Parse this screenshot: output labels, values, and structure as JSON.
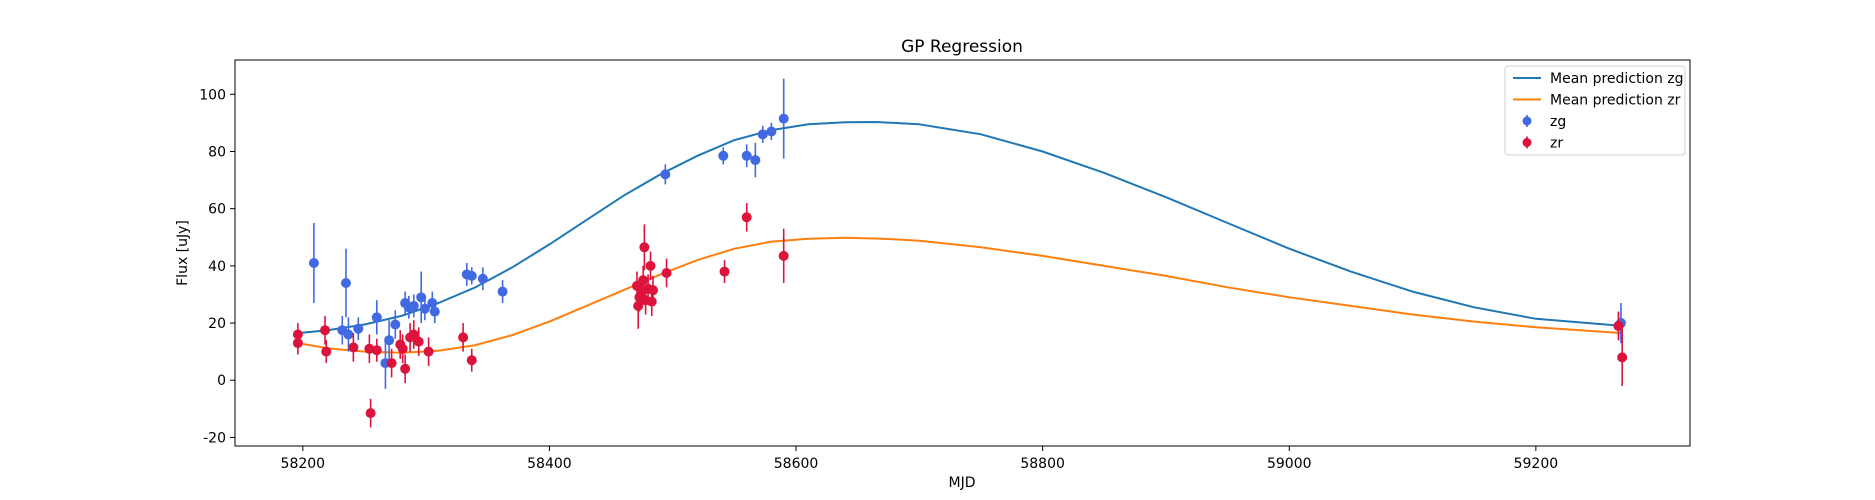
{
  "chart_data": {
    "type": "scatter",
    "title": "GP Regression",
    "xlabel": "MJD",
    "ylabel": "Flux [uJy]",
    "xlim": [
      58145,
      59325
    ],
    "ylim": [
      -23,
      112
    ],
    "xticks": [
      58200,
      58400,
      58600,
      58800,
      59000,
      59200
    ],
    "yticks": [
      -20,
      0,
      20,
      40,
      60,
      80,
      100
    ],
    "grid": false,
    "legend_position": "top-right",
    "lines": [
      {
        "name": "Mean prediction zg",
        "color": "#1f77b4",
        "x": [
          58196,
          58220,
          58250,
          58280,
          58310,
          58340,
          58370,
          58400,
          58430,
          58460,
          58490,
          58520,
          58550,
          58580,
          58610,
          58640,
          58665,
          58700,
          58750,
          58800,
          58850,
          58900,
          58950,
          59000,
          59050,
          59100,
          59150,
          59200,
          59270
        ],
        "y": [
          16.5,
          17.5,
          19.5,
          22.5,
          27,
          32.5,
          39.5,
          47.5,
          56,
          64.5,
          72,
          78.5,
          84,
          87.5,
          89.5,
          90.2,
          90.3,
          89.5,
          86,
          80,
          72.5,
          64,
          55,
          46,
          38,
          31,
          25.5,
          21.5,
          19
        ]
      },
      {
        "name": "Mean prediction zr",
        "color": "#ff7f0e",
        "x": [
          58196,
          58220,
          58250,
          58280,
          58310,
          58340,
          58370,
          58400,
          58430,
          58460,
          58490,
          58520,
          58550,
          58580,
          58610,
          58640,
          58670,
          58700,
          58750,
          58800,
          58850,
          58900,
          58950,
          59000,
          59050,
          59100,
          59150,
          59200,
          59270
        ],
        "y": [
          13,
          11.2,
          10,
          9.6,
          10.3,
          12.3,
          15.8,
          20.5,
          26,
          31.5,
          37,
          42,
          46,
          48.5,
          49.5,
          49.8,
          49.5,
          48.8,
          46.5,
          43.5,
          40,
          36.5,
          32.5,
          29,
          26,
          23,
          20.5,
          18.5,
          16.5
        ]
      }
    ],
    "series": [
      {
        "name": "zg",
        "color": "#4169e1",
        "points": [
          {
            "x": 58209,
            "y": 41,
            "err": 14
          },
          {
            "x": 58232,
            "y": 17.5,
            "err": 5
          },
          {
            "x": 58235,
            "y": 34,
            "err": 12
          },
          {
            "x": 58237,
            "y": 16,
            "err": 6
          },
          {
            "x": 58245,
            "y": 18,
            "err": 4
          },
          {
            "x": 58260,
            "y": 22,
            "err": 6
          },
          {
            "x": 58267,
            "y": 6,
            "err": 9
          },
          {
            "x": 58270,
            "y": 14,
            "err": 7
          },
          {
            "x": 58275,
            "y": 19.5,
            "err": 5
          },
          {
            "x": 58283,
            "y": 27,
            "err": 4
          },
          {
            "x": 58286,
            "y": 25.5,
            "err": 4
          },
          {
            "x": 58290,
            "y": 26,
            "err": 4
          },
          {
            "x": 58296,
            "y": 29,
            "err": 9
          },
          {
            "x": 58299,
            "y": 25,
            "err": 4
          },
          {
            "x": 58305,
            "y": 27,
            "err": 4
          },
          {
            "x": 58307,
            "y": 24,
            "err": 4
          },
          {
            "x": 58333,
            "y": 37,
            "err": 4
          },
          {
            "x": 58337,
            "y": 36.5,
            "err": 3
          },
          {
            "x": 58346,
            "y": 35.5,
            "err": 4
          },
          {
            "x": 58362,
            "y": 31,
            "err": 4
          },
          {
            "x": 58494,
            "y": 72,
            "err": 3.5
          },
          {
            "x": 58541,
            "y": 78.5,
            "err": 3
          },
          {
            "x": 58560,
            "y": 78.5,
            "err": 4
          },
          {
            "x": 58567,
            "y": 77,
            "err": 6
          },
          {
            "x": 58573,
            "y": 86,
            "err": 3
          },
          {
            "x": 58580,
            "y": 87,
            "err": 3
          },
          {
            "x": 58590,
            "y": 91.5,
            "err": 14
          },
          {
            "x": 59267,
            "y": 19,
            "err": 5
          },
          {
            "x": 59269,
            "y": 20,
            "err": 7
          }
        ]
      },
      {
        "name": "zr",
        "color": "#dc143c",
        "points": [
          {
            "x": 58196,
            "y": 16,
            "err": 4
          },
          {
            "x": 58196,
            "y": 13,
            "err": 4
          },
          {
            "x": 58218,
            "y": 17.5,
            "err": 5
          },
          {
            "x": 58219,
            "y": 10,
            "err": 4
          },
          {
            "x": 58241,
            "y": 11.5,
            "err": 5
          },
          {
            "x": 58254,
            "y": 11,
            "err": 5
          },
          {
            "x": 58255,
            "y": -11.5,
            "err": 5
          },
          {
            "x": 58260,
            "y": 10.5,
            "err": 4
          },
          {
            "x": 58272,
            "y": 6,
            "err": 5
          },
          {
            "x": 58279,
            "y": 12.5,
            "err": 5
          },
          {
            "x": 58281,
            "y": 11,
            "err": 5
          },
          {
            "x": 58283,
            "y": 4,
            "err": 5
          },
          {
            "x": 58287,
            "y": 15,
            "err": 5
          },
          {
            "x": 58290,
            "y": 16,
            "err": 5
          },
          {
            "x": 58294,
            "y": 13.5,
            "err": 5
          },
          {
            "x": 58302,
            "y": 10,
            "err": 5
          },
          {
            "x": 58330,
            "y": 15,
            "err": 5
          },
          {
            "x": 58337,
            "y": 7,
            "err": 4
          },
          {
            "x": 58471,
            "y": 33,
            "err": 5
          },
          {
            "x": 58472,
            "y": 26,
            "err": 8
          },
          {
            "x": 58473,
            "y": 29,
            "err": 5
          },
          {
            "x": 58475,
            "y": 31,
            "err": 5
          },
          {
            "x": 58476,
            "y": 35,
            "err": 5
          },
          {
            "x": 58477,
            "y": 46.5,
            "err": 8
          },
          {
            "x": 58478,
            "y": 28,
            "err": 5
          },
          {
            "x": 58480,
            "y": 32,
            "err": 5
          },
          {
            "x": 58482,
            "y": 40,
            "err": 5
          },
          {
            "x": 58483,
            "y": 27.5,
            "err": 5
          },
          {
            "x": 58484,
            "y": 31.5,
            "err": 5
          },
          {
            "x": 58495,
            "y": 37.5,
            "err": 5
          },
          {
            "x": 58542,
            "y": 38,
            "err": 4
          },
          {
            "x": 58560,
            "y": 57,
            "err": 5
          },
          {
            "x": 58590,
            "y": 43.5,
            "err": 9.5
          },
          {
            "x": 59267,
            "y": 19,
            "err": 5
          },
          {
            "x": 59270,
            "y": 8,
            "err": 10
          }
        ]
      }
    ]
  }
}
